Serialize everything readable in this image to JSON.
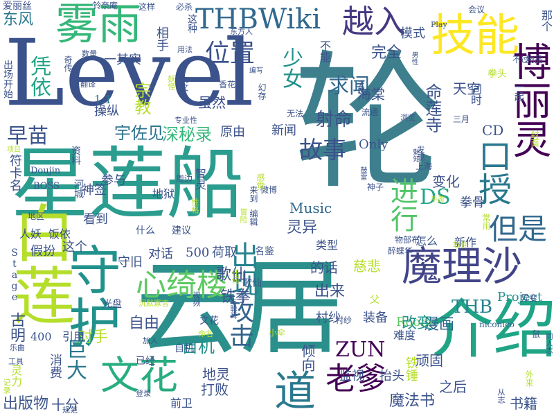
{
  "words": [
    {
      "text": "Level"
    },
    {
      "text": "轮"
    },
    {
      "text": "星莲船"
    },
    {
      "text": "云居"
    },
    {
      "text": "介绍"
    },
    {
      "text": "魔理沙"
    },
    {
      "text": "雾雨"
    },
    {
      "text": "技能"
    },
    {
      "text": "越入"
    },
    {
      "text": "THBWiki"
    },
    {
      "text": "博丽灵"
    },
    {
      "text": "白莲"
    },
    {
      "text": "守护"
    },
    {
      "text": "心绮楼"
    },
    {
      "text": "文花"
    },
    {
      "text": "老爹"
    },
    {
      "text": "道"
    },
    {
      "text": "故事"
    },
    {
      "text": "口授"
    },
    {
      "text": "进行"
    },
    {
      "text": "但是"
    },
    {
      "text": "攻击"
    },
    {
      "text": "出现"
    },
    {
      "text": "位置"
    },
    {
      "text": "求闻"
    },
    {
      "text": "射命"
    },
    {
      "text": "凭依"
    },
    {
      "text": "早苗"
    },
    {
      "text": "宇佐见"
    },
    {
      "text": "深秘录"
    },
    {
      "text": "ZUN"
    },
    {
      "text": "THB"
    },
    {
      "text": "DS"
    },
    {
      "text": "Only"
    },
    {
      "text": "Music"
    },
    {
      "text": "Project"
    },
    {
      "text": "Room"
    },
    {
      "text": "Doujin"
    },
    {
      "text": "BOSS"
    },
    {
      "text": "Stage"
    },
    {
      "text": "niconico"
    },
    {
      "text": "Play"
    },
    {
      "text": "CD"
    },
    {
      "text": "1.1"
    },
    {
      "text": "500"
    },
    {
      "text": "400"
    },
    {
      "text": "东风"
    },
    {
      "text": "少女"
    },
    {
      "text": "海棠"
    },
    {
      "text": "命莲寺"
    },
    {
      "text": "天空"
    },
    {
      "text": "新闻"
    },
    {
      "text": "原由"
    },
    {
      "text": "自由"
    },
    {
      "text": "自机"
    },
    {
      "text": "对手"
    },
    {
      "text": "铁拳"
    },
    {
      "text": "歌仙"
    },
    {
      "text": "漫画"
    },
    {
      "text": "出来"
    },
    {
      "text": "改变"
    },
    {
      "text": "魔法书"
    },
    {
      "text": "之后"
    },
    {
      "text": "书籍"
    },
    {
      "text": "巨大"
    },
    {
      "text": "地灵"
    },
    {
      "text": "打败"
    },
    {
      "text": "出版物"
    },
    {
      "text": "十分"
    },
    {
      "text": "灵力"
    },
    {
      "text": "消费"
    },
    {
      "text": "古明"
    },
    {
      "text": "引用"
    },
    {
      "text": "对话"
    },
    {
      "text": "荷取"
    },
    {
      "text": "守旧"
    },
    {
      "text": "假扮"
    },
    {
      "text": "这个"
    },
    {
      "text": "符卡名"
    },
    {
      "text": "灵异"
    },
    {
      "text": "变化"
    },
    {
      "text": "拳骨"
    },
    {
      "text": "新作"
    },
    {
      "text": "类型"
    },
    {
      "text": "的话"
    },
    {
      "text": "慈悲"
    },
    {
      "text": "装备"
    },
    {
      "text": "村纱"
    },
    {
      "text": "倾向"
    },
    {
      "text": "顽固"
    },
    {
      "text": "监视"
    },
    {
      "text": "抬头"
    },
    {
      "text": "铁锤"
    },
    {
      "text": "难度"
    },
    {
      "text": "完全"
    },
    {
      "text": "模式"
    },
    {
      "text": "不能"
    },
    {
      "text": "宗教"
    },
    {
      "text": "虽然"
    },
    {
      "text": "操纵"
    },
    {
      "text": "一其实"
    },
    {
      "text": "相手"
    },
    {
      "text": "参与"
    },
    {
      "text": "神签"
    },
    {
      "text": "看到"
    },
    {
      "text": "饭依"
    },
    {
      "text": "人妖"
    },
    {
      "text": "地狱"
    },
    {
      "text": "智灵"
    },
    {
      "text": "地区"
    },
    {
      "text": "上海"
    },
    {
      "text": "流通"
    },
    {
      "text": "同时"
    },
    {
      "text": "一起"
    },
    {
      "text": "那个"
    },
    {
      "text": "怎么"
    },
    {
      "text": "名鉴"
    },
    {
      "text": "什么"
    },
    {
      "text": "建议"
    },
    {
      "text": "光盘"
    },
    {
      "text": "前卫"
    },
    {
      "text": "自机"
    },
    {
      "text": "已经"
    },
    {
      "text": "爱丽丝"
    },
    {
      "text": "铃奈庵"
    },
    {
      "text": "这样"
    },
    {
      "text": "必杀"
    },
    {
      "text": "会议"
    },
    {
      "text": "出场开始"
    },
    {
      "text": "周边"
    },
    {
      "text": "神子"
    },
    {
      "text": "资料"
    },
    {
      "text": "歌仙"
    },
    {
      "text": "文花"
    },
    {
      "text": "外来"
    },
    {
      "text": "小伞"
    },
    {
      "text": "工具"
    },
    {
      "text": "记录"
    },
    {
      "text": "规范"
    },
    {
      "text": "登录"
    },
    {
      "text": "乐曲"
    },
    {
      "text": "鼠"
    },
    {
      "text": "父"
    },
    {
      "text": "异变"
    },
    {
      "text": "同人志"
    },
    {
      "text": "软件"
    },
    {
      "text": "物部布"
    },
    {
      "text": "醉蝶华"
    },
    {
      "text": "常用"
    },
    {
      "text": "拳头"
    },
    {
      "text": "不过"
    },
    {
      "text": "物品"
    },
    {
      "text": "三月"
    },
    {
      "text": "浏览"
    },
    {
      "text": "发现"
    },
    {
      "text": "封面"
    },
    {
      "text": "视频"
    },
    {
      "text": "沉默寡言"
    },
    {
      "text": "加入"
    },
    {
      "text": "命名"
    },
    {
      "text": "任何"
    },
    {
      "text": "性格"
    },
    {
      "text": "冒险"
    },
    {
      "text": "微博"
    },
    {
      "text": "编辑"
    },
    {
      "text": "来到"
    },
    {
      "text": "感觉"
    },
    {
      "text": "丰聪耳"
    },
    {
      "text": "村纱"
    },
    {
      "text": "从志"
    },
    {
      "text": "魅知"
    },
    {
      "text": "鼓雷"
    },
    {
      "text": "手游"
    },
    {
      "text": "幻存"
    },
    {
      "text": "丸文"
    },
    {
      "text": "香花"
    },
    {
      "text": "编写"
    },
    {
      "text": "无法"
    },
    {
      "text": "专业性"
    },
    {
      "text": "妖怪"
    },
    {
      "text": "翻译"
    },
    {
      "text": "数量"
    },
    {
      "text": "奇传"
    },
    {
      "text": "用法"
    },
    {
      "text": "东方人"
    },
    {
      "text": "男性"
    },
    {
      "text": "天则"
    },
    {
      "text": "这种"
    },
    {
      "text": "河城"
    },
    {
      "text": "项目"
    }
  ]
}
